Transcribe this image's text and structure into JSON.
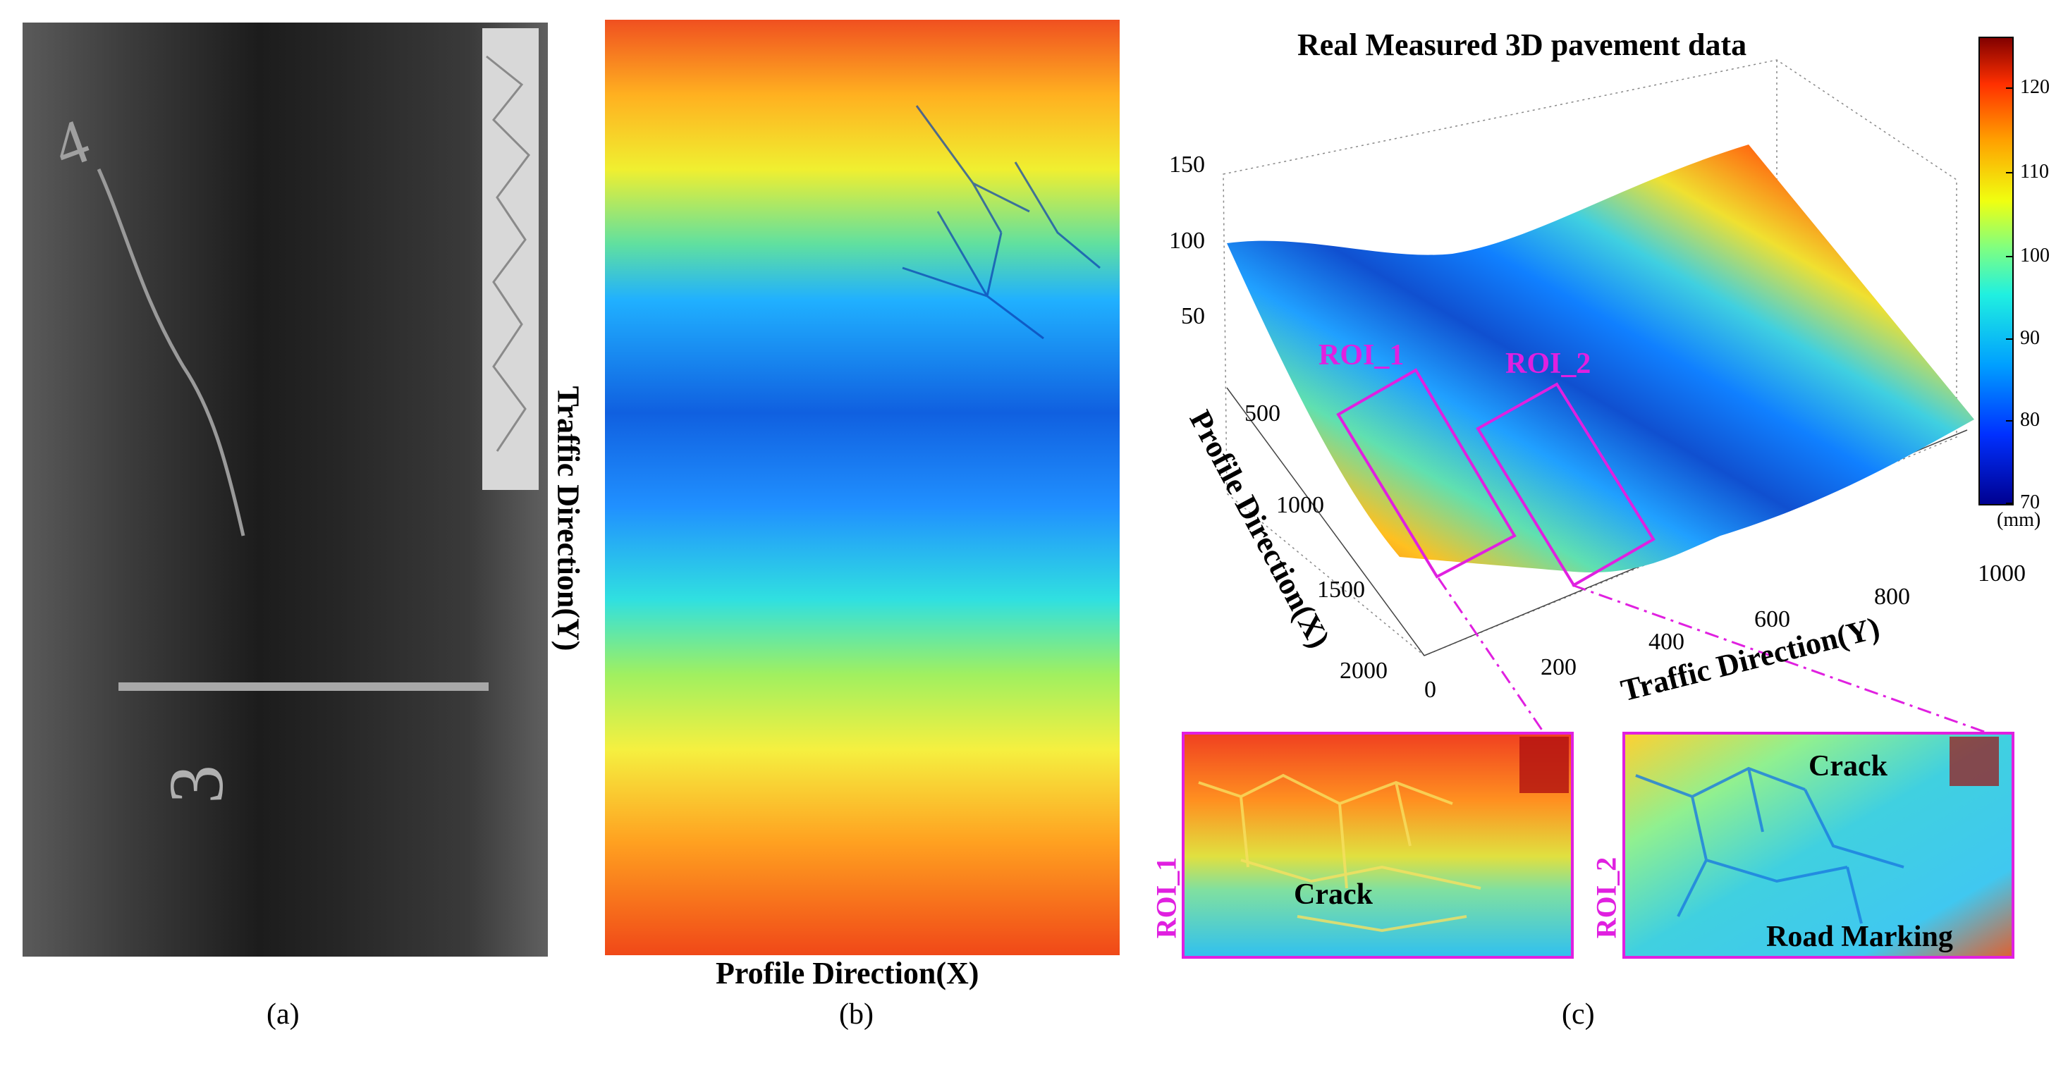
{
  "panel_a": {
    "caption": "(a)",
    "marks": {
      "top": "4",
      "bottom": "3"
    }
  },
  "panel_b": {
    "caption": "(b)",
    "xlabel": "Profile Direction(X)",
    "ylabel": "Traffic Direction(Y)"
  },
  "panel_c": {
    "caption": "(c)",
    "chart_data": {
      "type": "surface",
      "title": "Real Measured 3D pavement data",
      "xlabel": "Profile Direction(X)",
      "ylabel": "Traffic Direction(Y)",
      "x_ticks": [
        "500",
        "1000",
        "1500",
        "2000"
      ],
      "y_ticks": [
        "0",
        "200",
        "400",
        "600",
        "800",
        "1000"
      ],
      "z_ticks": [
        "50",
        "100",
        "150"
      ],
      "xlim": [
        0,
        2000
      ],
      "ylim": [
        0,
        1000
      ],
      "zlim": [
        0,
        150
      ],
      "colorbar": {
        "ticks": [
          "70",
          "80",
          "90",
          "100",
          "110",
          "120"
        ],
        "range": [
          70,
          125
        ],
        "unit": "(mm)"
      },
      "rois": [
        {
          "name": "ROI_1",
          "annotations": [
            "Crack"
          ]
        },
        {
          "name": "ROI_2",
          "annotations": [
            "Crack",
            "Road Marking"
          ]
        }
      ]
    },
    "colors": {
      "roi": "#e020e0"
    }
  }
}
